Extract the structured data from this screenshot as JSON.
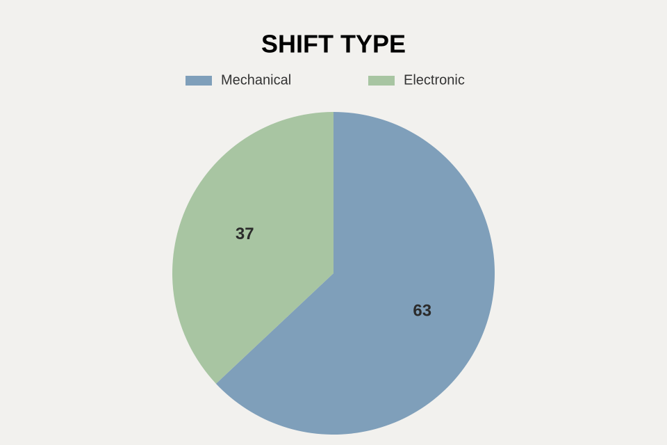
{
  "chart_data": {
    "type": "pie",
    "title": "SHIFT TYPE",
    "categories": [
      "Mechanical",
      "Electronic"
    ],
    "values": [
      63,
      37
    ],
    "colors": [
      "#7f9fba",
      "#a8c5a2"
    ],
    "legend": "top"
  }
}
